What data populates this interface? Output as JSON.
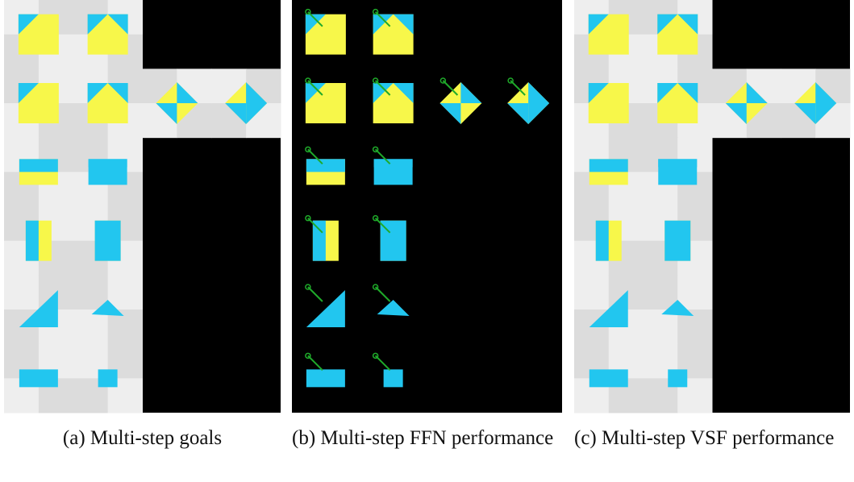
{
  "captions": [
    "(a) Multi-step goals",
    "(b) Multi-step FFN performance",
    "(c) Multi-step VSF performance"
  ]
}
